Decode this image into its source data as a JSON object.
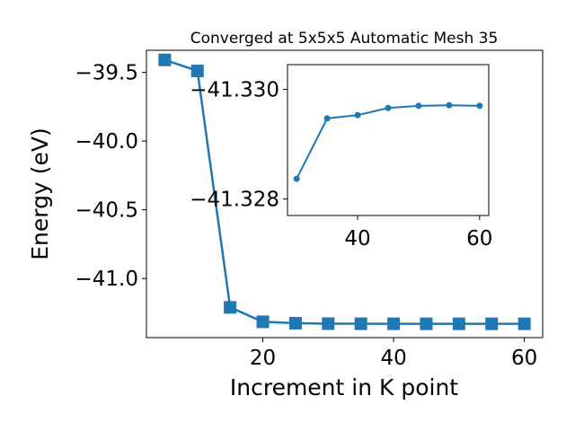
{
  "chart_data": [
    {
      "type": "line",
      "title": "Converged at 5x5x5 Automatic Mesh 35",
      "xlabel": "Increment in K point",
      "ylabel": "Energy (eV)",
      "xlim": [
        2.2,
        62.8
      ],
      "ylim": [
        -41.43,
        -39.34
      ],
      "xticks": [
        20,
        40,
        60
      ],
      "xtick_labels": [
        "20",
        "40",
        "60"
      ],
      "yticks": [
        -39.5,
        -40.0,
        -40.5,
        -41.0
      ],
      "ytick_labels": [
        "−39.5",
        "−40.0",
        "−40.5",
        "−41.0"
      ],
      "marker": "square",
      "color": "#1f77b4",
      "grid": false,
      "series": [
        {
          "x": [
            5,
            10,
            15,
            20,
            25,
            30,
            35,
            40,
            45,
            50,
            55,
            60
          ],
          "y": [
            -39.41,
            -39.49,
            -41.21,
            -41.315,
            -41.325,
            -41.3285,
            -41.3291,
            -41.3293,
            -41.3295,
            -41.3295,
            -41.3296,
            -41.3295
          ]
        }
      ]
    },
    {
      "type": "line",
      "title": "",
      "inset": true,
      "xlim": [
        28.5,
        61.5
      ],
      "ylim": [
        -41.3277,
        -41.33045
      ],
      "xticks": [
        40,
        60
      ],
      "xtick_labels": [
        "40",
        "60"
      ],
      "yticks": [
        -41.33,
        -41.328
      ],
      "ytick_labels": [
        "−41.330",
        "−41.328"
      ],
      "marker": "circle",
      "color": "#1f77b4",
      "grid": false,
      "series": [
        {
          "x": [
            30,
            35,
            40,
            45,
            50,
            55,
            60
          ],
          "y": [
            -41.32837,
            -41.32947,
            -41.32953,
            -41.32966,
            -41.3297,
            -41.32971,
            -41.3297
          ]
        }
      ]
    }
  ]
}
